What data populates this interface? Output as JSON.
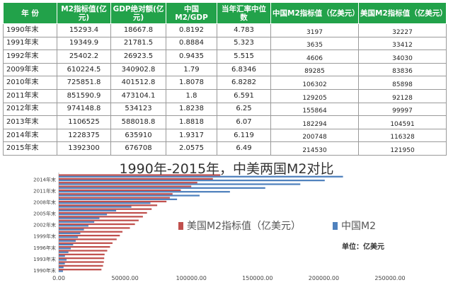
{
  "table": {
    "headers": [
      "年  份",
      "M2指标值(亿元)",
      "GDP绝对额(亿元)",
      "中国M2/GDP",
      "当年汇率中位数",
      "中国M2指标值（亿美元）",
      "美国M2指标值（亿美元）"
    ],
    "rows": [
      [
        "1990年末",
        "15293.4",
        "18667.8",
        "0.8192",
        "4.783",
        "3197",
        "32227"
      ],
      [
        "1991年末",
        "19349.9",
        "21781.5",
        "0.8884",
        "5.323",
        "3635",
        "33412"
      ],
      [
        "1992年末",
        "25402.2",
        "26923.5",
        "0.9435",
        "5.515",
        "4606",
        "34030"
      ],
      [
        "2009年末",
        "610224.5",
        "340902.8",
        "1.79",
        "6.8346",
        "89285",
        "83836"
      ],
      [
        "2010年末",
        "725851.8",
        "401512.8",
        "1.8078",
        "6.8282",
        "106302",
        "85898"
      ],
      [
        "2011年末",
        "851590.9",
        "473104.1",
        "1.8",
        "6.591",
        "129205",
        "92128"
      ],
      [
        "2012年末",
        "974148.8",
        "534123",
        "1.8238",
        "6.25",
        "155864",
        "99997"
      ],
      [
        "2013年末",
        "1106525",
        "588018.8",
        "1.8818",
        "6.07",
        "182294",
        "104591"
      ],
      [
        "2014年末",
        "1228375",
        "635910",
        "1.9317",
        "6.119",
        "200748",
        "116328"
      ],
      [
        "2015年末",
        "1392300",
        "676708",
        "2.0575",
        "6.49",
        "214530",
        "121950"
      ]
    ]
  },
  "chart_title": "1990年-2015年，中美两国M2对比",
  "legend": {
    "us_label": "美国M2指标值（亿美元）",
    "cn_label": "中国M2",
    "unit_note": "单位：亿美元"
  },
  "colors": {
    "header_bg": "#22a24a",
    "us": "#c0504d",
    "cn": "#4f81bd"
  },
  "chart_data": {
    "type": "bar",
    "orientation": "horizontal",
    "title": "1990年-2015年，中美两国M2对比",
    "categories": [
      "1990年末",
      "1991年末",
      "1992年末",
      "1993年末",
      "1994年末",
      "1995年末",
      "1996年末",
      "1997年末",
      "1998年末",
      "1999年末",
      "2000年末",
      "2001年末",
      "2002年末",
      "2003年末",
      "2004年末",
      "2005年末",
      "2006年末",
      "2007年末",
      "2008年末",
      "2009年末",
      "2010年末",
      "2011年末",
      "2012年末",
      "2013年末",
      "2014年末",
      "2015年末"
    ],
    "tick_labels": [
      "1990年末",
      "1993年末",
      "1996年末",
      "1999年末",
      "2002年末",
      "2005年末",
      "2008年末",
      "2011年末",
      "2014年末"
    ],
    "x_ticks": [
      "0.00",
      "50000.00",
      "100000.00",
      "150000.00",
      "200000.00",
      "250000.00"
    ],
    "xlim": [
      0,
      250000
    ],
    "grid": false,
    "legend_position": "right",
    "series": [
      {
        "name": "美国M2指标值（亿美元）",
        "values": [
          32227,
          33412,
          34030,
          34300,
          34600,
          36600,
          38700,
          40600,
          43700,
          46100,
          48100,
          53700,
          57500,
          60300,
          63500,
          66600,
          70100,
          74300,
          81300,
          83836,
          85898,
          92128,
          99997,
          104591,
          116328,
          121950
        ]
      },
      {
        "name": "中国M2",
        "values": [
          3197,
          3635,
          4606,
          5900,
          4700,
          7300,
          9100,
          10900,
          12800,
          14500,
          16300,
          19000,
          22400,
          26800,
          30700,
          36400,
          43300,
          54800,
          69200,
          89285,
          106302,
          129205,
          155864,
          182294,
          200748,
          214530
        ]
      }
    ]
  }
}
